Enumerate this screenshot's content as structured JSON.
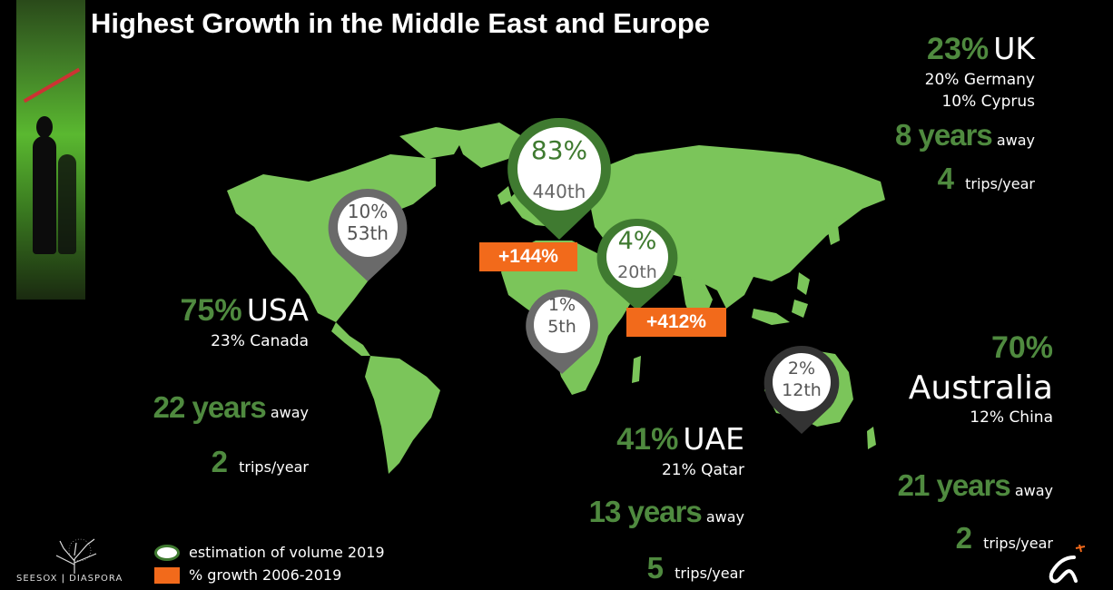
{
  "title": "Highest Growth in the Middle East and Europe",
  "colors": {
    "land": "#7bc55a",
    "accent_green": "#4f8a3f",
    "growth_orange": "#f26a1b",
    "pin_grey": "#6a6a6a",
    "pin_green": "#3f7a30"
  },
  "pins": {
    "usa": {
      "pct": "10%",
      "rank": "53th"
    },
    "uk": {
      "pct": "83%",
      "rank": "440th"
    },
    "uae": {
      "pct": "4%",
      "rank": "20th"
    },
    "africa": {
      "pct": "1%",
      "rank": "5th"
    },
    "australia": {
      "pct": "2%",
      "rank": "12th"
    }
  },
  "growth": {
    "europe": "+144%",
    "middle_east": "+412%"
  },
  "regions": {
    "uk": {
      "pct": "23%",
      "name": "UK",
      "line1": "20%  Germany",
      "line2": "10% Cyprus",
      "years": "8 years",
      "away": "away",
      "trips": "4",
      "trips_label": "trips/year"
    },
    "usa": {
      "pct": "75%",
      "name": "USA",
      "line1": "23% Canada",
      "years": "22 years",
      "away": "away",
      "trips": "2",
      "trips_label": "trips/year"
    },
    "uae": {
      "pct": "41%",
      "name": "UAE",
      "line1": "21% Qatar",
      "years": "13 years",
      "away": "away",
      "trips": "5",
      "trips_label": "trips/year"
    },
    "australia": {
      "pct": "70%",
      "name": "Australia",
      "line1": "12% China",
      "years": "21 years",
      "away": "away",
      "trips": "2",
      "trips_label": "trips/year"
    }
  },
  "legend": {
    "volume": "estimation of volume 2019",
    "growth": "% growth 2006-2019"
  },
  "logo": {
    "left": "SEESOX",
    "right": "DIASPORA"
  }
}
